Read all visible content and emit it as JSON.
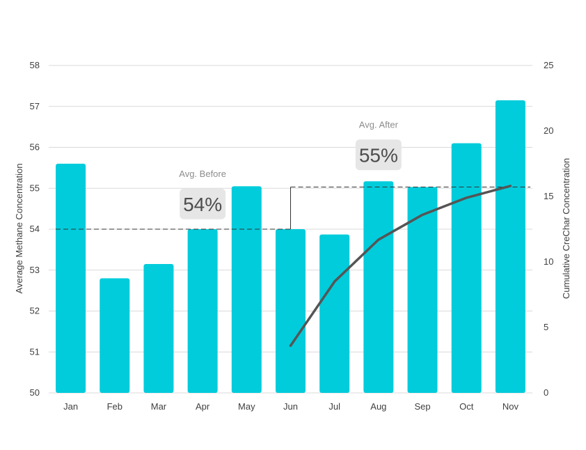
{
  "chart_data": {
    "type": "bar",
    "categories": [
      "Jan",
      "Feb",
      "Mar",
      "Apr",
      "May",
      "Jun",
      "Jul",
      "Aug",
      "Sep",
      "Oct",
      "Nov"
    ],
    "series": [
      {
        "type": "bar",
        "axis": "left",
        "values": [
          55.6,
          52.8,
          53.15,
          54.0,
          55.05,
          54.0,
          53.87,
          55.17,
          55.03,
          56.1,
          57.15
        ],
        "color": "#00CCDB"
      },
      {
        "type": "line",
        "axis": "right",
        "x": [
          "Jun",
          "Jul",
          "Aug",
          "Sep",
          "Oct",
          "Nov"
        ],
        "values": [
          3.6,
          8.5,
          11.7,
          13.6,
          14.9,
          15.8
        ],
        "color": "#555555"
      }
    ],
    "ylabel": "Average Methane Concentration",
    "ylim": [
      50,
      58
    ],
    "yticks": [
      "50",
      "51",
      "52",
      "53",
      "54",
      "55",
      "56",
      "57",
      "58"
    ],
    "y2label": "Cumulative CreChar Concentration",
    "y2lim": [
      0,
      25
    ],
    "y2ticks": [
      "0",
      "5",
      "10",
      "15",
      "20",
      "25"
    ],
    "grid": true,
    "reference_lines": [
      {
        "from": "Jan",
        "to": "Jun",
        "value": 54.0,
        "style": "dashed"
      },
      {
        "from": "Jun",
        "to": "Nov",
        "value": 55.03,
        "style": "dashed"
      }
    ],
    "annotations": [
      {
        "label": "Avg. Before",
        "value": "54%",
        "at": "Apr",
        "y": 54.6
      },
      {
        "label": "Avg. After",
        "value": "55%",
        "at": "Aug",
        "y": 55.8
      }
    ]
  }
}
